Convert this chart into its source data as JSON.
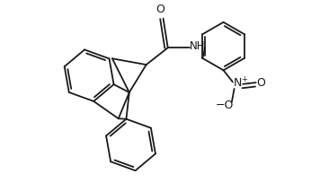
{
  "background_color": "#ffffff",
  "line_color": "#1a1a1a",
  "line_width": 1.3,
  "figsize": [
    3.46,
    2.13
  ],
  "dpi": 100,
  "xlim": [
    -2.5,
    4.5
  ],
  "ylim": [
    -3.2,
    3.0
  ]
}
